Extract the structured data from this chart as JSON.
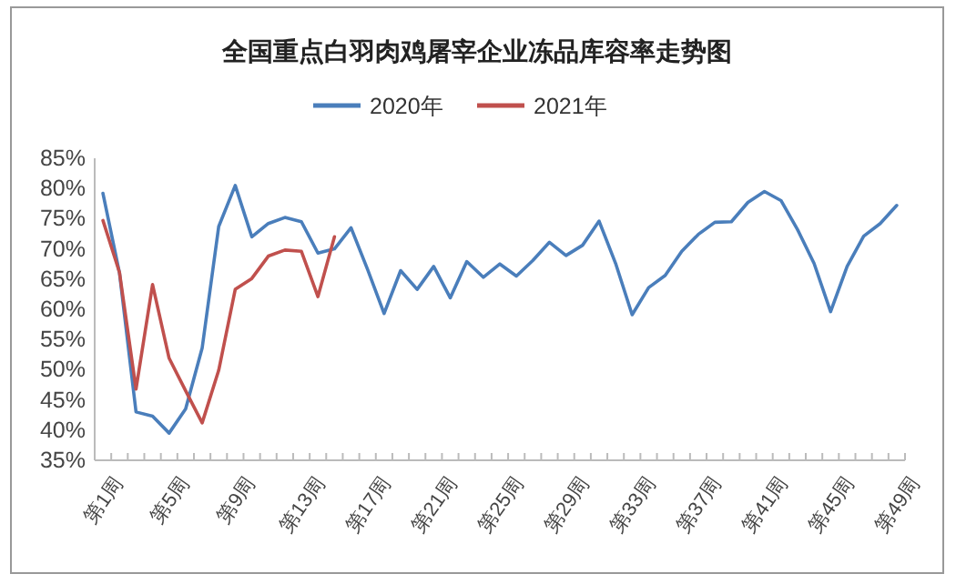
{
  "chart_data": {
    "type": "line",
    "title": "全国重点白羽肉鸡屠宰企业冻品库容率走势图",
    "categories": [
      "第1周",
      null,
      null,
      null,
      "第5周",
      null,
      null,
      null,
      "第9周",
      null,
      null,
      null,
      "第13周",
      null,
      null,
      null,
      "第17周",
      null,
      null,
      null,
      "第21周",
      null,
      null,
      null,
      "第25周",
      null,
      null,
      null,
      "第29周",
      null,
      null,
      null,
      "第33周",
      null,
      null,
      null,
      "第37周",
      null,
      null,
      null,
      "第41周",
      null,
      null,
      null,
      "第45周",
      null,
      null,
      null,
      "第49周"
    ],
    "series": [
      {
        "name": "2020年",
        "color": "#4a7ebb",
        "values": [
          79.2,
          66,
          43,
          42.3,
          39.5,
          43.5,
          53.6,
          73.7,
          80.5,
          72,
          74.2,
          75.2,
          74.5,
          69.3,
          70,
          73.5,
          66.6,
          59.3,
          66.4,
          63.3,
          67.1,
          61.9,
          67.9,
          65.3,
          67.5,
          65.5,
          68.1,
          71.1,
          68.9,
          70.6,
          74.6,
          67.6,
          59.1,
          63.6,
          65.6,
          69.6,
          72.4,
          74.4,
          74.5,
          77.7,
          79.5,
          78,
          73.2,
          67.6,
          59.6,
          67.1,
          72.1,
          74.2,
          77.2
        ]
      },
      {
        "name": "2021年",
        "color": "#c0504d",
        "values": [
          74.7,
          66.1,
          46.8,
          64.1,
          51.9,
          46.5,
          41.2,
          49.9,
          63.3,
          65.1,
          68.8,
          69.8,
          69.6,
          62.1,
          72,
          null,
          null,
          null,
          null,
          null,
          null,
          null,
          null,
          null,
          null,
          null,
          null,
          null,
          null,
          null,
          null,
          null,
          null,
          null,
          null,
          null,
          null,
          null,
          null,
          null,
          null,
          null,
          null,
          null,
          null,
          null,
          null,
          null,
          null
        ]
      }
    ],
    "ylim": [
      35,
      85
    ],
    "yticks": [
      {
        "value": 35,
        "label": "35%"
      },
      {
        "value": 40,
        "label": "40%"
      },
      {
        "value": 45,
        "label": "45%"
      },
      {
        "value": 50,
        "label": "50%"
      },
      {
        "value": 55,
        "label": "55%"
      },
      {
        "value": 60,
        "label": "60%"
      },
      {
        "value": 65,
        "label": "65%"
      },
      {
        "value": 70,
        "label": "70%"
      },
      {
        "value": 75,
        "label": "75%"
      },
      {
        "value": 80,
        "label": "80%"
      },
      {
        "value": 85,
        "label": "85%"
      }
    ],
    "legend": "top",
    "grid": false,
    "marker": "none",
    "line_style": "solid"
  }
}
